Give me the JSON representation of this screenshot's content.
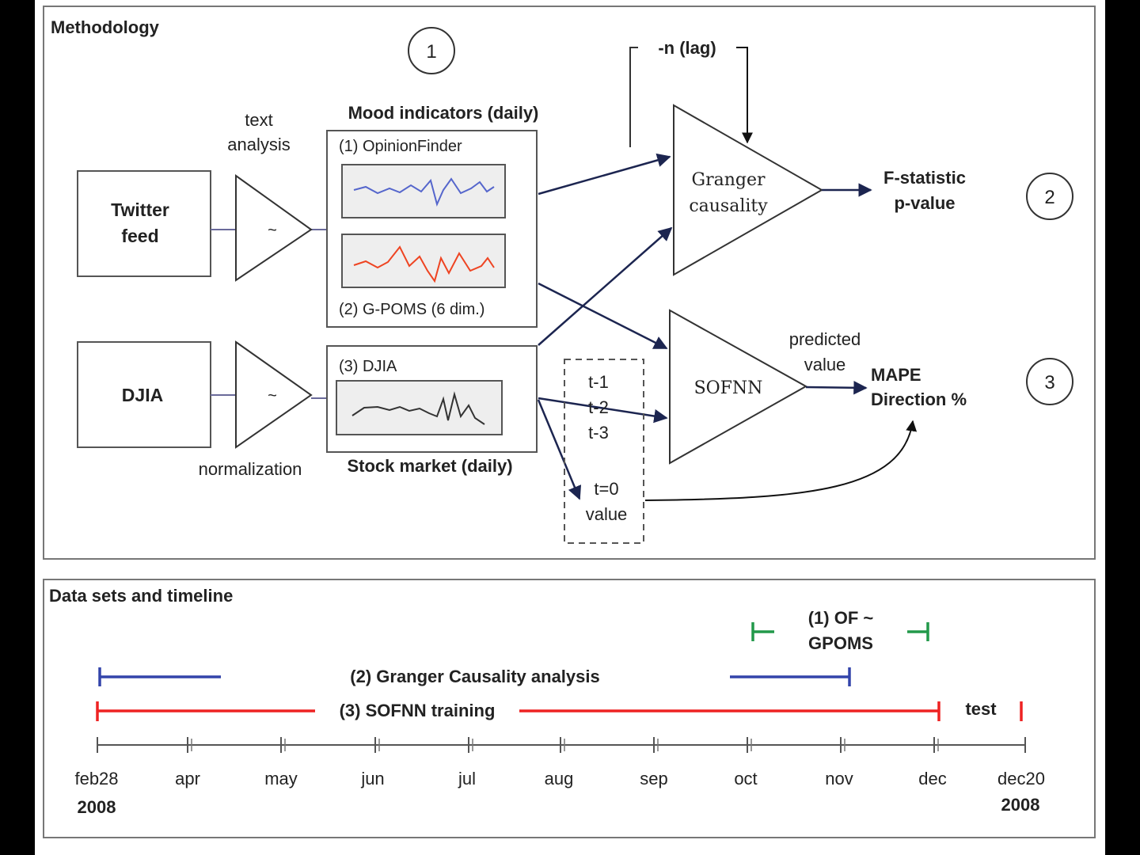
{
  "methodology": {
    "title": "Methodology",
    "step1": "1",
    "step2": "2",
    "step3": "3",
    "twitter_line1": "Twitter",
    "twitter_line2": "feed",
    "djia_box": "DJIA",
    "text_analysis_line1": "text",
    "text_analysis_line2": "analysis",
    "normalization": "normalization",
    "tilde": "~",
    "mood_header": "Mood indicators (daily)",
    "opinionfinder": "(1) OpinionFinder",
    "gpoms": "(2) G-POMS (6 dim.)",
    "djia_panel": "(3) DJIA",
    "stock_header": "Stock market (daily)",
    "lag": "-n (lag)",
    "granger_line1": "Granger",
    "granger_line2": "causality",
    "fstat_line1": "F-statistic",
    "fstat_line2": "p-value",
    "sofnn": "SOFNN",
    "predicted_line1": "predicted",
    "predicted_line2": "value",
    "mape_line1": "MAPE",
    "mape_line2": "Direction %",
    "t1": "t-1",
    "t2": "t-2",
    "t3": "t-3",
    "t0_line1": "t=0",
    "t0_line2": "value",
    "colors": {
      "opinionfinder": "#5566cc",
      "gpoms": "#ee4422",
      "djia": "#333333"
    }
  },
  "timeline": {
    "title": "Data sets and timeline",
    "of_gpoms_line1": "(1) OF ~",
    "of_gpoms_line2": "GPOMS",
    "granger_label": "(2) Granger Causality analysis",
    "sofnn_label": "(3) SOFNN training",
    "test_label": "test",
    "months": [
      "feb28",
      "apr",
      "may",
      "jun",
      "jul",
      "aug",
      "sep",
      "oct",
      "nov",
      "dec",
      "dec20"
    ],
    "year_start": "2008",
    "year_end": "2008",
    "colors": {
      "of_gpoms": "#22994a",
      "granger": "#3344aa",
      "sofnn": "#ee2222"
    }
  }
}
